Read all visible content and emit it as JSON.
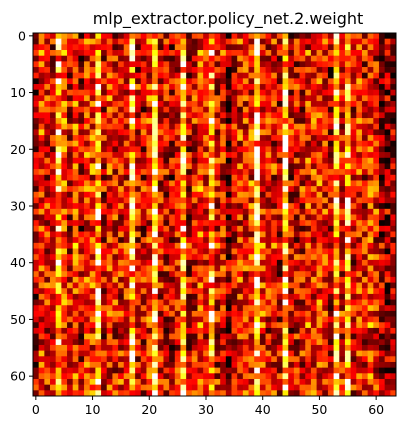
{
  "chart_data": {
    "type": "heatmap",
    "title": "mlp_extractor.policy_net.2.weight",
    "xlabel": "",
    "ylabel": "",
    "rows": 64,
    "cols": 64,
    "xlim": [
      -0.5,
      63.5
    ],
    "ylim": [
      63.5,
      -0.5
    ],
    "x_ticks": [
      0,
      10,
      20,
      30,
      40,
      50,
      60
    ],
    "y_ticks": [
      0,
      10,
      20,
      30,
      40,
      50,
      60
    ],
    "x_tick_labels": [
      "0",
      "10",
      "20",
      "30",
      "40",
      "50",
      "60"
    ],
    "y_tick_labels": [
      "0",
      "10",
      "20",
      "30",
      "40",
      "50",
      "60"
    ],
    "colormap": "hot",
    "colormap_stops": [
      "#0a0000",
      "#ff0000",
      "#ffff00",
      "#ffffff"
    ],
    "value_range": [
      0,
      1
    ],
    "grid": false,
    "legend": "none",
    "bright_columns": [
      4,
      11,
      17,
      21,
      26,
      31,
      39,
      44,
      53,
      55
    ],
    "dim_columns": [
      34,
      61,
      62,
      63
    ]
  }
}
